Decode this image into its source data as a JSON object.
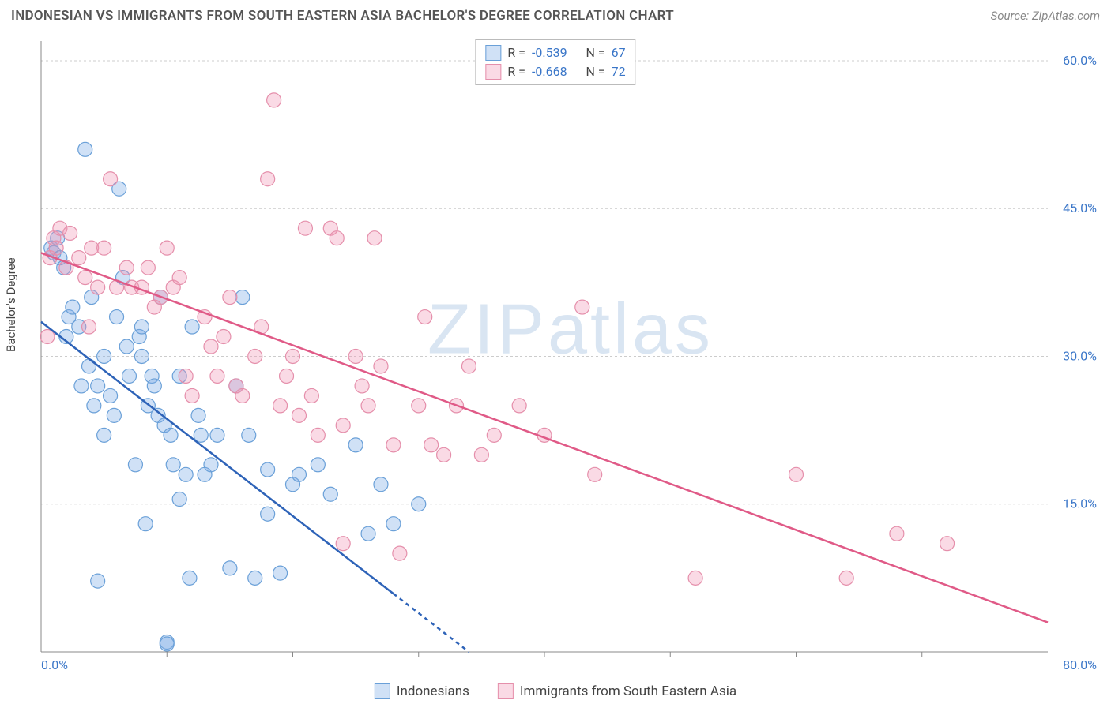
{
  "title": "INDONESIAN VS IMMIGRANTS FROM SOUTH EASTERN ASIA BACHELOR'S DEGREE CORRELATION CHART",
  "source_label": "Source: ZipAtlas.com",
  "watermark": "ZIPatlas",
  "y_axis_label": "Bachelor's Degree",
  "chart": {
    "type": "scatter",
    "xlim": [
      0,
      80
    ],
    "ylim": [
      0,
      62
    ],
    "x_ticks": [
      0,
      80
    ],
    "x_tick_labels": [
      "0.0%",
      "80.0%"
    ],
    "x_minor_ticks": [
      10,
      20,
      30,
      40,
      50,
      60,
      70
    ],
    "y_ticks": [
      15,
      30,
      45,
      60
    ],
    "y_tick_labels": [
      "15.0%",
      "30.0%",
      "45.0%",
      "60.0%"
    ],
    "grid_color": "#cccccc",
    "background_color": "#ffffff",
    "marker_radius": 9,
    "marker_stroke_width": 1.2,
    "trend_line_width": 2.5,
    "series": [
      {
        "name": "Indonesians",
        "fill": "rgba(120,170,230,0.35)",
        "stroke": "#6aa0d8",
        "trend_stroke": "#2e63b8",
        "R_label": "R =",
        "R": "-0.539",
        "N_label": "N =",
        "N": "67",
        "trend": {
          "x1": 0,
          "y1": 33.5,
          "x2": 34,
          "y2": 0
        },
        "trend_dashed_after_x": 28,
        "points": [
          [
            0.8,
            41
          ],
          [
            1,
            40.5
          ],
          [
            1.3,
            42
          ],
          [
            1.5,
            40
          ],
          [
            1.8,
            39
          ],
          [
            2,
            32
          ],
          [
            2.2,
            34
          ],
          [
            2.5,
            35
          ],
          [
            3,
            33
          ],
          [
            3.2,
            27
          ],
          [
            3.5,
            51
          ],
          [
            3.8,
            29
          ],
          [
            4,
            36
          ],
          [
            4.2,
            25
          ],
          [
            4.5,
            27
          ],
          [
            5,
            30
          ],
          [
            5,
            22
          ],
          [
            5.5,
            26
          ],
          [
            5.8,
            24
          ],
          [
            6,
            34
          ],
          [
            6.2,
            47
          ],
          [
            6.5,
            38
          ],
          [
            6.8,
            31
          ],
          [
            7,
            28
          ],
          [
            7.5,
            19
          ],
          [
            7.8,
            32
          ],
          [
            8,
            33
          ],
          [
            8,
            30
          ],
          [
            8.3,
            13
          ],
          [
            8.5,
            25
          ],
          [
            8.8,
            28
          ],
          [
            9,
            27
          ],
          [
            9.3,
            24
          ],
          [
            9.5,
            36
          ],
          [
            9.8,
            23
          ],
          [
            10,
            1
          ],
          [
            10,
            0.8
          ],
          [
            10.3,
            22
          ],
          [
            10.5,
            19
          ],
          [
            11,
            28
          ],
          [
            11.5,
            18
          ],
          [
            11.8,
            7.5
          ],
          [
            12,
            33
          ],
          [
            12.5,
            24
          ],
          [
            12.7,
            22
          ],
          [
            13,
            18
          ],
          [
            13.5,
            19
          ],
          [
            14,
            22
          ],
          [
            15,
            8.5
          ],
          [
            15.5,
            27
          ],
          [
            16,
            36
          ],
          [
            16.5,
            22
          ],
          [
            17,
            7.5
          ],
          [
            18,
            14
          ],
          [
            19,
            8
          ],
          [
            20,
            17
          ],
          [
            20.5,
            18
          ],
          [
            22,
            19
          ],
          [
            23,
            16
          ],
          [
            25,
            21
          ],
          [
            26,
            12
          ],
          [
            27,
            17
          ],
          [
            28,
            13
          ],
          [
            30,
            15
          ],
          [
            18,
            18.5
          ],
          [
            11,
            15.5
          ],
          [
            4.5,
            7.2
          ]
        ]
      },
      {
        "name": "Immigrants from South Eastern Asia",
        "fill": "rgba(240,150,180,0.35)",
        "stroke": "#e58fab",
        "trend_stroke": "#e05a87",
        "R_label": "R =",
        "R": "-0.668",
        "N_label": "N =",
        "N": "72",
        "trend": {
          "x1": 0,
          "y1": 40.5,
          "x2": 80,
          "y2": 3
        },
        "points": [
          [
            0.5,
            32
          ],
          [
            0.7,
            40
          ],
          [
            1,
            42
          ],
          [
            1.2,
            41
          ],
          [
            1.5,
            43
          ],
          [
            2,
            39
          ],
          [
            2.3,
            42.5
          ],
          [
            3,
            40
          ],
          [
            3.5,
            38
          ],
          [
            4,
            41
          ],
          [
            4.5,
            37
          ],
          [
            5,
            41
          ],
          [
            5.5,
            48
          ],
          [
            6,
            37
          ],
          [
            6.8,
            39
          ],
          [
            7.2,
            37
          ],
          [
            8,
            37
          ],
          [
            8.5,
            39
          ],
          [
            9,
            35
          ],
          [
            9.5,
            36
          ],
          [
            10,
            41
          ],
          [
            10.5,
            37
          ],
          [
            11,
            38
          ],
          [
            11.5,
            28
          ],
          [
            12,
            26
          ],
          [
            13,
            34
          ],
          [
            13.5,
            31
          ],
          [
            14,
            28
          ],
          [
            14.5,
            32
          ],
          [
            15,
            36
          ],
          [
            15.5,
            27
          ],
          [
            16,
            26
          ],
          [
            17,
            30
          ],
          [
            17.5,
            33
          ],
          [
            18,
            48
          ],
          [
            18.5,
            56
          ],
          [
            19,
            25
          ],
          [
            19.5,
            28
          ],
          [
            20,
            30
          ],
          [
            20.5,
            24
          ],
          [
            21,
            43
          ],
          [
            21.5,
            26
          ],
          [
            22,
            22
          ],
          [
            23,
            43
          ],
          [
            23.5,
            42
          ],
          [
            24,
            23
          ],
          [
            25,
            30
          ],
          [
            25.5,
            27
          ],
          [
            26,
            25
          ],
          [
            26.5,
            42
          ],
          [
            27,
            29
          ],
          [
            28,
            21
          ],
          [
            28.5,
            10
          ],
          [
            30,
            25
          ],
          [
            30.5,
            34
          ],
          [
            31,
            21
          ],
          [
            32,
            20
          ],
          [
            33,
            25
          ],
          [
            34,
            29
          ],
          [
            35,
            20
          ],
          [
            36,
            22
          ],
          [
            38,
            25
          ],
          [
            40,
            22
          ],
          [
            43,
            35
          ],
          [
            44,
            18
          ],
          [
            52,
            7.5
          ],
          [
            60,
            18
          ],
          [
            64,
            7.5
          ],
          [
            68,
            12
          ],
          [
            72,
            11
          ],
          [
            24,
            11
          ],
          [
            3.8,
            33
          ]
        ]
      }
    ],
    "bottom_legend": [
      {
        "label": "Indonesians",
        "fill": "rgba(120,170,230,0.35)",
        "stroke": "#6aa0d8"
      },
      {
        "label": "Immigrants from South Eastern Asia",
        "fill": "rgba(240,150,180,0.35)",
        "stroke": "#e58fab"
      }
    ]
  }
}
